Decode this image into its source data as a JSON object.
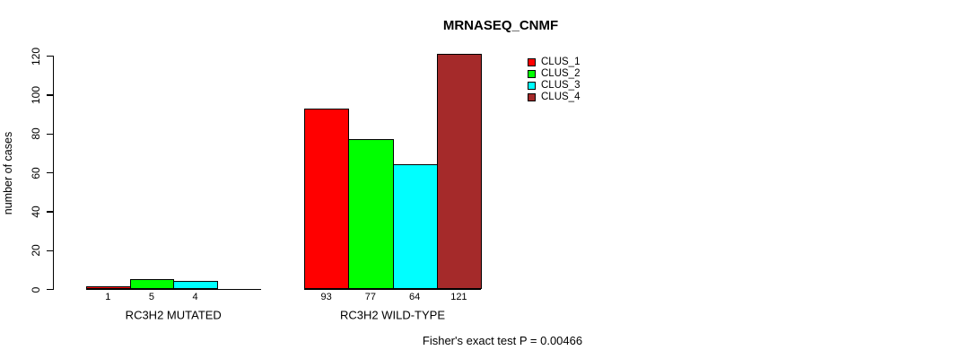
{
  "chart_data": {
    "type": "bar",
    "title": "MRNASEQ_CNMF",
    "ylabel": "number of cases",
    "xlabel": "",
    "ylim": [
      0,
      120
    ],
    "yticks": [
      0,
      20,
      40,
      60,
      80,
      100,
      120
    ],
    "grid": false,
    "legend_position": "inside-top-right",
    "bar_border_color": "#000000",
    "categories": [
      "RC3H2 MUTATED",
      "RC3H2 WILD-TYPE"
    ],
    "series": [
      {
        "name": "CLUS_1",
        "color": "#ff0000",
        "values": [
          1,
          93
        ]
      },
      {
        "name": "CLUS_2",
        "color": "#00ff00",
        "values": [
          5,
          77
        ]
      },
      {
        "name": "CLUS_3",
        "color": "#00ffff",
        "values": [
          4,
          64
        ]
      },
      {
        "name": "CLUS_4",
        "color": "#a52a2a",
        "values": [
          0,
          121
        ]
      }
    ],
    "value_labels": {
      "show": true,
      "hide_zero": true
    },
    "annotation": "Fisher's exact test P = 0.00466"
  }
}
